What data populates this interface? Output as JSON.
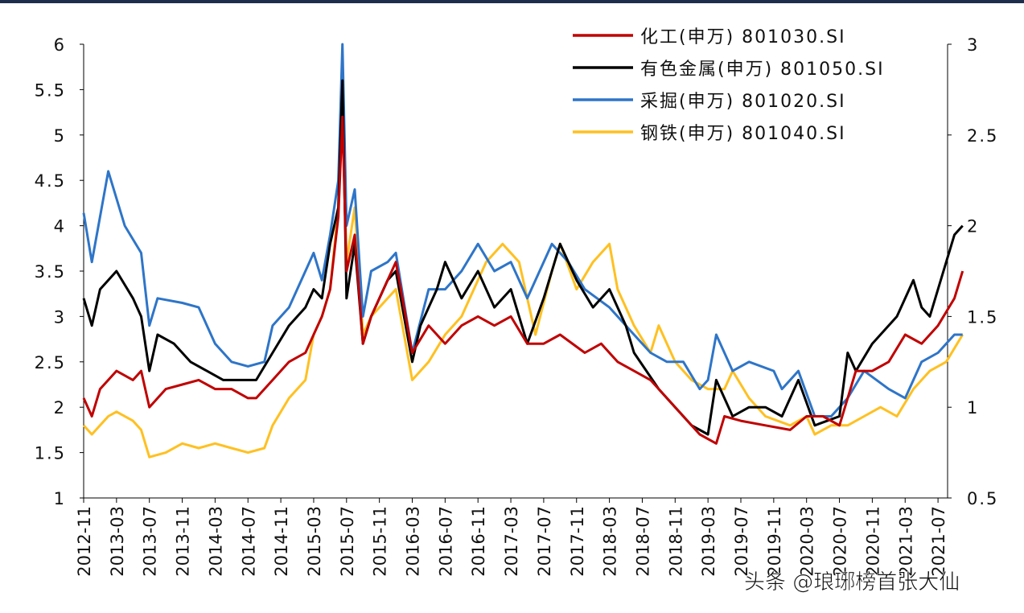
{
  "chart_data": {
    "type": "line",
    "title": "",
    "xlabel": "",
    "ylabel": "",
    "ylim_left": [
      1,
      6
    ],
    "ylim_right": [
      0.5,
      3
    ],
    "left_ticks": [
      "1",
      "1.5",
      "2",
      "2.5",
      "3",
      "3.5",
      "4",
      "4.5",
      "5",
      "5.5",
      "6"
    ],
    "right_ticks": [
      "0.5",
      "1",
      "1.5",
      "2",
      "2.5",
      "3"
    ],
    "x_unit": "months since 2012-11",
    "x_ticks": [
      "2012-11",
      "2013-03",
      "2013-07",
      "2013-11",
      "2014-03",
      "2014-07",
      "2014-11",
      "2015-03",
      "2015-07",
      "2015-11",
      "2016-03",
      "2016-07",
      "2016-11",
      "2017-03",
      "2017-07",
      "2017-11",
      "2018-03",
      "2018-07",
      "2018-11",
      "2019-03",
      "2019-07",
      "2019-11",
      "2020-03",
      "2020-07",
      "2020-11",
      "2021-03",
      "2021-07"
    ],
    "legend_position": "top-right",
    "series": [
      {
        "name": "化工(申万) 801030.SI",
        "color": "#c00000",
        "points": [
          [
            0,
            2.1
          ],
          [
            1,
            1.9
          ],
          [
            2,
            2.2
          ],
          [
            4,
            2.4
          ],
          [
            6,
            2.3
          ],
          [
            7,
            2.4
          ],
          [
            8,
            2.0
          ],
          [
            10,
            2.2
          ],
          [
            12,
            2.25
          ],
          [
            14,
            2.3
          ],
          [
            16,
            2.2
          ],
          [
            18,
            2.2
          ],
          [
            20,
            2.1
          ],
          [
            21,
            2.1
          ],
          [
            23,
            2.3
          ],
          [
            25,
            2.5
          ],
          [
            27,
            2.6
          ],
          [
            28,
            2.8
          ],
          [
            29,
            3.0
          ],
          [
            30,
            3.3
          ],
          [
            31,
            4.1
          ],
          [
            31.5,
            5.2
          ],
          [
            32,
            3.5
          ],
          [
            33,
            3.9
          ],
          [
            34,
            2.7
          ],
          [
            35,
            3.0
          ],
          [
            37,
            3.4
          ],
          [
            38,
            3.6
          ],
          [
            40,
            2.6
          ],
          [
            42,
            2.9
          ],
          [
            44,
            2.7
          ],
          [
            46,
            2.9
          ],
          [
            48,
            3.0
          ],
          [
            50,
            2.9
          ],
          [
            52,
            3.0
          ],
          [
            54,
            2.7
          ],
          [
            56,
            2.7
          ],
          [
            58,
            2.8
          ],
          [
            61,
            2.6
          ],
          [
            63,
            2.7
          ],
          [
            65,
            2.5
          ],
          [
            67,
            2.4
          ],
          [
            69,
            2.3
          ],
          [
            71,
            2.1
          ],
          [
            73,
            1.9
          ],
          [
            75,
            1.7
          ],
          [
            77,
            1.6
          ],
          [
            78,
            1.9
          ],
          [
            80,
            1.85
          ],
          [
            83,
            1.8
          ],
          [
            86,
            1.75
          ],
          [
            88,
            1.9
          ],
          [
            90,
            1.9
          ],
          [
            92,
            1.8
          ],
          [
            94,
            2.4
          ],
          [
            96,
            2.4
          ],
          [
            98,
            2.5
          ],
          [
            100,
            2.8
          ],
          [
            102,
            2.7
          ],
          [
            104,
            2.9
          ],
          [
            106,
            3.2
          ],
          [
            107,
            3.5
          ]
        ]
      },
      {
        "name": "有色金属(申万) 801050.SI",
        "color": "#000000",
        "points": [
          [
            0,
            3.2
          ],
          [
            1,
            2.9
          ],
          [
            2,
            3.3
          ],
          [
            4,
            3.5
          ],
          [
            6,
            3.2
          ],
          [
            7,
            3.0
          ],
          [
            8,
            2.4
          ],
          [
            9,
            2.8
          ],
          [
            11,
            2.7
          ],
          [
            13,
            2.5
          ],
          [
            15,
            2.4
          ],
          [
            17,
            2.3
          ],
          [
            19,
            2.3
          ],
          [
            21,
            2.3
          ],
          [
            23,
            2.6
          ],
          [
            25,
            2.9
          ],
          [
            27,
            3.1
          ],
          [
            28,
            3.3
          ],
          [
            29,
            3.2
          ],
          [
            30,
            3.8
          ],
          [
            31,
            4.2
          ],
          [
            31.5,
            5.6
          ],
          [
            32,
            3.2
          ],
          [
            33,
            3.8
          ],
          [
            34,
            2.7
          ],
          [
            35,
            3.0
          ],
          [
            37,
            3.4
          ],
          [
            38,
            3.5
          ],
          [
            40,
            2.5
          ],
          [
            41,
            2.9
          ],
          [
            43,
            3.3
          ],
          [
            44,
            3.6
          ],
          [
            46,
            3.2
          ],
          [
            48,
            3.5
          ],
          [
            50,
            3.1
          ],
          [
            52,
            3.3
          ],
          [
            54,
            2.7
          ],
          [
            56,
            3.2
          ],
          [
            58,
            3.8
          ],
          [
            60,
            3.4
          ],
          [
            62,
            3.1
          ],
          [
            64,
            3.3
          ],
          [
            66,
            2.9
          ],
          [
            67,
            2.6
          ],
          [
            70,
            2.2
          ],
          [
            72,
            2.0
          ],
          [
            74,
            1.8
          ],
          [
            76,
            1.7
          ],
          [
            77,
            2.3
          ],
          [
            79,
            1.9
          ],
          [
            81,
            2.0
          ],
          [
            83,
            2.0
          ],
          [
            85,
            1.9
          ],
          [
            87,
            2.3
          ],
          [
            89,
            1.8
          ],
          [
            92,
            1.9
          ],
          [
            93,
            2.6
          ],
          [
            94,
            2.4
          ],
          [
            96,
            2.7
          ],
          [
            99,
            3.0
          ],
          [
            101,
            3.4
          ],
          [
            102,
            3.1
          ],
          [
            103,
            3.0
          ],
          [
            104,
            3.3
          ],
          [
            105,
            3.6
          ],
          [
            106,
            3.9
          ],
          [
            107,
            4.0
          ]
        ]
      },
      {
        "name": "采掘(申万) 801020.SI",
        "color": "#2e75c8",
        "points": [
          [
            0,
            4.14
          ],
          [
            1,
            3.6
          ],
          [
            3,
            4.6
          ],
          [
            5,
            4.0
          ],
          [
            7,
            3.7
          ],
          [
            8,
            2.9
          ],
          [
            9,
            3.2
          ],
          [
            12,
            3.15
          ],
          [
            14,
            3.1
          ],
          [
            16,
            2.7
          ],
          [
            18,
            2.5
          ],
          [
            20,
            2.45
          ],
          [
            22,
            2.5
          ],
          [
            23,
            2.9
          ],
          [
            25,
            3.1
          ],
          [
            27,
            3.5
          ],
          [
            28,
            3.7
          ],
          [
            29,
            3.4
          ],
          [
            30,
            3.9
          ],
          [
            31,
            4.5
          ],
          [
            31.5,
            6.0
          ],
          [
            32,
            4.0
          ],
          [
            33,
            4.4
          ],
          [
            34,
            3.0
          ],
          [
            35,
            3.5
          ],
          [
            37,
            3.6
          ],
          [
            38,
            3.7
          ],
          [
            40,
            2.6
          ],
          [
            42,
            3.3
          ],
          [
            44,
            3.3
          ],
          [
            46,
            3.5
          ],
          [
            48,
            3.8
          ],
          [
            50,
            3.5
          ],
          [
            52,
            3.6
          ],
          [
            54,
            3.2
          ],
          [
            57,
            3.8
          ],
          [
            59,
            3.6
          ],
          [
            61,
            3.3
          ],
          [
            64,
            3.1
          ],
          [
            67,
            2.8
          ],
          [
            69,
            2.6
          ],
          [
            71,
            2.5
          ],
          [
            73,
            2.5
          ],
          [
            75,
            2.2
          ],
          [
            76,
            2.3
          ],
          [
            77,
            2.8
          ],
          [
            79,
            2.4
          ],
          [
            81,
            2.5
          ],
          [
            84,
            2.4
          ],
          [
            85,
            2.2
          ],
          [
            87,
            2.4
          ],
          [
            89,
            1.9
          ],
          [
            91,
            1.9
          ],
          [
            93,
            2.1
          ],
          [
            95,
            2.4
          ],
          [
            98,
            2.2
          ],
          [
            100,
            2.1
          ],
          [
            102,
            2.5
          ],
          [
            104,
            2.6
          ],
          [
            106,
            2.8
          ],
          [
            107,
            2.8
          ]
        ]
      },
      {
        "name": "钢铁(申万) 801040.SI",
        "color": "#ffc020",
        "points": [
          [
            0,
            1.8
          ],
          [
            1,
            1.7
          ],
          [
            3,
            1.9
          ],
          [
            4,
            1.95
          ],
          [
            6,
            1.85
          ],
          [
            7,
            1.75
          ],
          [
            8,
            1.45
          ],
          [
            10,
            1.5
          ],
          [
            12,
            1.6
          ],
          [
            14,
            1.55
          ],
          [
            16,
            1.6
          ],
          [
            18,
            1.55
          ],
          [
            20,
            1.5
          ],
          [
            22,
            1.55
          ],
          [
            23,
            1.8
          ],
          [
            25,
            2.1
          ],
          [
            27,
            2.3
          ],
          [
            28,
            2.8
          ],
          [
            29,
            3.0
          ],
          [
            30,
            3.3
          ],
          [
            31,
            4.2
          ],
          [
            31.5,
            5.4
          ],
          [
            32,
            3.6
          ],
          [
            33,
            4.2
          ],
          [
            34,
            2.8
          ],
          [
            35,
            3.0
          ],
          [
            37,
            3.2
          ],
          [
            38,
            3.3
          ],
          [
            40,
            2.3
          ],
          [
            42,
            2.5
          ],
          [
            44,
            2.8
          ],
          [
            46,
            3.0
          ],
          [
            48,
            3.4
          ],
          [
            49,
            3.6
          ],
          [
            51,
            3.8
          ],
          [
            53,
            3.6
          ],
          [
            55,
            2.8
          ],
          [
            57,
            3.5
          ],
          [
            58,
            3.8
          ],
          [
            60,
            3.3
          ],
          [
            62,
            3.6
          ],
          [
            64,
            3.8
          ],
          [
            65,
            3.3
          ],
          [
            67,
            2.9
          ],
          [
            69,
            2.6
          ],
          [
            70,
            2.9
          ],
          [
            72,
            2.5
          ],
          [
            74,
            2.3
          ],
          [
            76,
            2.2
          ],
          [
            78,
            2.2
          ],
          [
            79,
            2.4
          ],
          [
            81,
            2.1
          ],
          [
            83,
            1.9
          ],
          [
            86,
            1.8
          ],
          [
            88,
            1.9
          ],
          [
            89,
            1.7
          ],
          [
            91,
            1.8
          ],
          [
            93,
            1.8
          ],
          [
            95,
            1.9
          ],
          [
            97,
            2.0
          ],
          [
            99,
            1.9
          ],
          [
            101,
            2.2
          ],
          [
            103,
            2.4
          ],
          [
            105,
            2.5
          ],
          [
            107,
            2.8
          ]
        ]
      }
    ]
  },
  "watermark": "头条 @琅琊榜首张大仙"
}
